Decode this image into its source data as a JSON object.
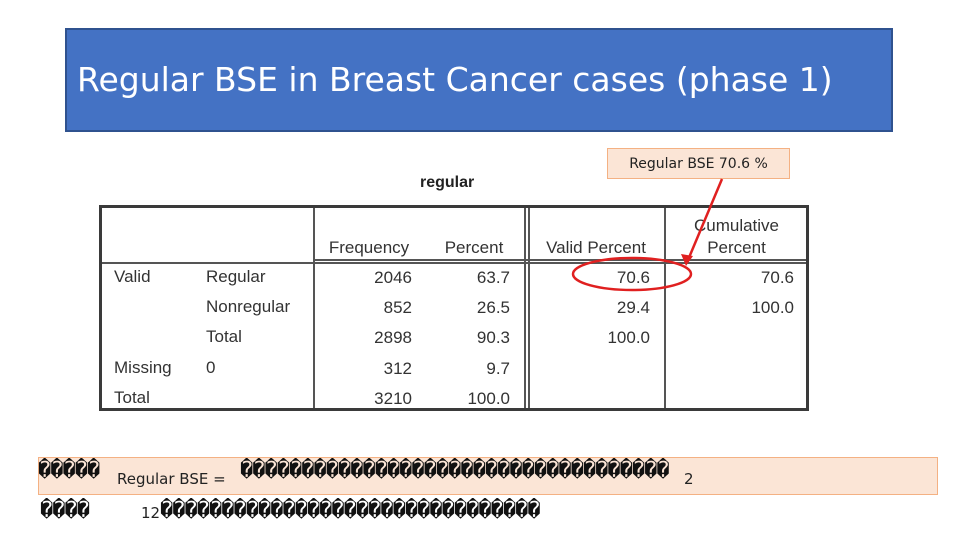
{
  "slide": {
    "title": "Regular BSE in Breast Cancer cases (phase 1)",
    "callout": "Regular BSE 70.6 %",
    "colors": {
      "title_bg": "#4472c4",
      "callout_bg": "#fbe5d6",
      "highlight": "#e02020"
    }
  },
  "table": {
    "caption": "regular",
    "headers": {
      "frequency": "Frequency",
      "percent": "Percent",
      "valid_percent": "Valid Percent",
      "cumulative_line1": "Cumulative",
      "cumulative_line2": "Percent"
    },
    "rows": [
      {
        "group": "Valid",
        "label": "Regular",
        "frequency": "2046",
        "percent": "63.7",
        "valid_percent": "70.6",
        "cumulative": "70.6"
      },
      {
        "group": "",
        "label": "Nonregular",
        "frequency": "852",
        "percent": "26.5",
        "valid_percent": "29.4",
        "cumulative": "100.0"
      },
      {
        "group": "",
        "label": "Total",
        "frequency": "2898",
        "percent": "90.3",
        "valid_percent": "100.0",
        "cumulative": ""
      },
      {
        "group": "Missing",
        "label": "0",
        "frequency": "312",
        "percent": "9.7",
        "valid_percent": "",
        "cumulative": ""
      },
      {
        "group": "Total",
        "label": "",
        "frequency": "3210",
        "percent": "100.0",
        "valid_percent": "",
        "cumulative": ""
      }
    ]
  },
  "formula": {
    "left_garble": "�����",
    "label": "Regular BSE =",
    "right_garble": "�����������������������������������",
    "numerator_mark": "2",
    "line2_garble": "����",
    "denominator_mark": "12",
    "line2_rest": "�������������������������������"
  }
}
